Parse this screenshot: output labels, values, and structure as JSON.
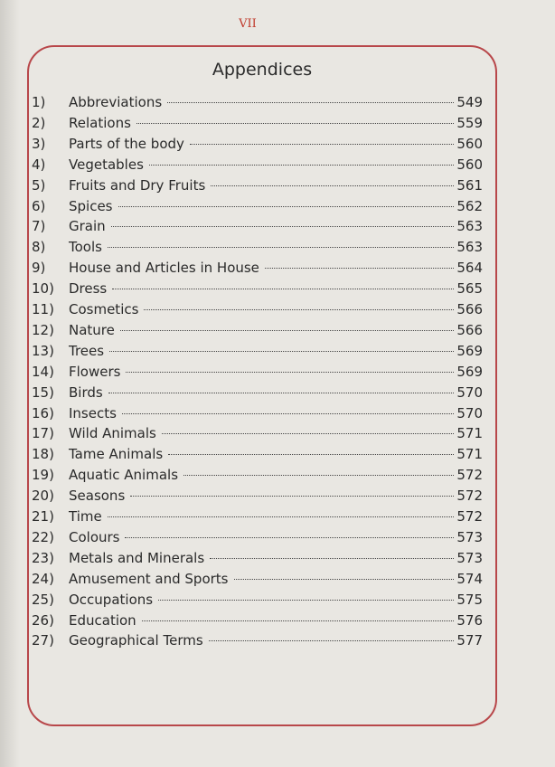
{
  "page_number": "VII",
  "title": "Appendices",
  "entries": [
    {
      "num": "1)",
      "label": "Abbreviations",
      "page": "549"
    },
    {
      "num": "2)",
      "label": "Relations",
      "page": "559"
    },
    {
      "num": "3)",
      "label": "Parts of the body",
      "page": "560"
    },
    {
      "num": "4)",
      "label": "Vegetables",
      "page": "560"
    },
    {
      "num": "5)",
      "label": "Fruits and Dry Fruits",
      "page": "561"
    },
    {
      "num": "6)",
      "label": "Spices",
      "page": "562"
    },
    {
      "num": "7)",
      "label": "Grain",
      "page": "563"
    },
    {
      "num": "8)",
      "label": "Tools",
      "page": "563"
    },
    {
      "num": "9)",
      "label": "House and Articles in House",
      "page": "564"
    },
    {
      "num": "10)",
      "label": "Dress",
      "page": "565"
    },
    {
      "num": "11)",
      "label": "Cosmetics",
      "page": "566"
    },
    {
      "num": "12)",
      "label": "Nature",
      "page": "566"
    },
    {
      "num": "13)",
      "label": "Trees",
      "page": "569"
    },
    {
      "num": "14)",
      "label": "Flowers",
      "page": "569"
    },
    {
      "num": "15)",
      "label": "Birds",
      "page": "570"
    },
    {
      "num": "16)",
      "label": "Insects",
      "page": "570"
    },
    {
      "num": "17)",
      "label": "Wild Animals",
      "page": "571"
    },
    {
      "num": "18)",
      "label": "Tame Animals",
      "page": "571"
    },
    {
      "num": "19)",
      "label": "Aquatic Animals",
      "page": "572"
    },
    {
      "num": "20)",
      "label": "Seasons",
      "page": "572"
    },
    {
      "num": "21)",
      "label": "Time",
      "page": "572"
    },
    {
      "num": "22)",
      "label": "Colours",
      "page": "573"
    },
    {
      "num": "23)",
      "label": "Metals and Minerals",
      "page": "573"
    },
    {
      "num": "24)",
      "label": "Amusement and  Sports",
      "page": "574"
    },
    {
      "num": "25)",
      "label": "Occupations",
      "page": "575"
    },
    {
      "num": "26)",
      "label": "Education",
      "page": "576"
    },
    {
      "num": "27)",
      "label": "Geographical Terms",
      "page": "577"
    }
  ]
}
